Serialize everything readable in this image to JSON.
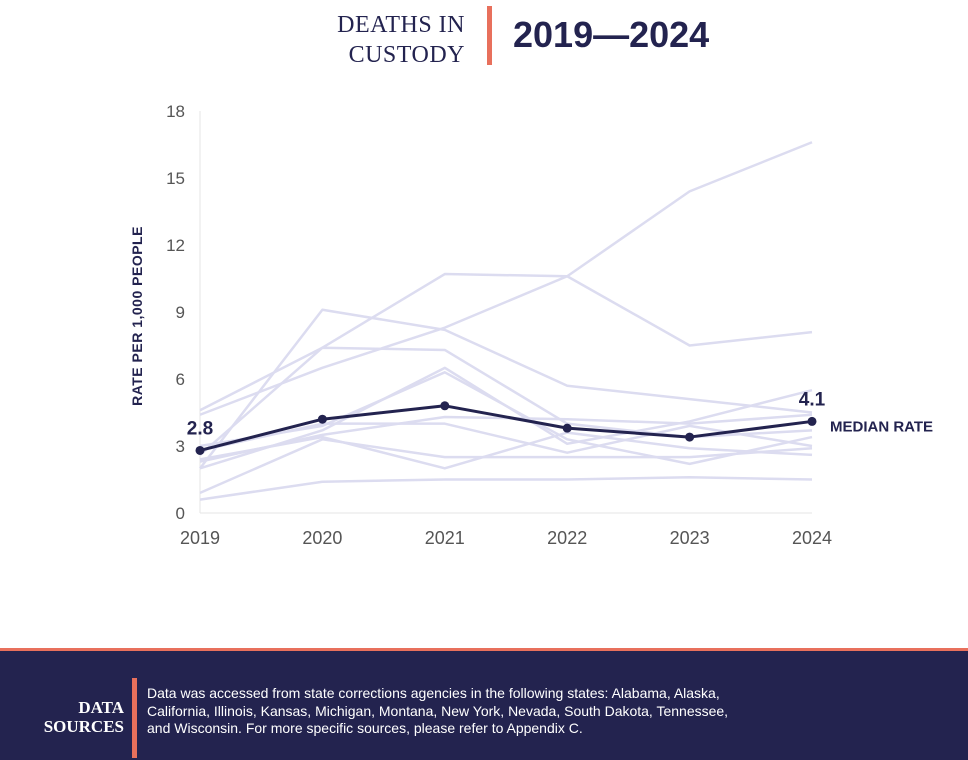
{
  "header": {
    "title_line1": "DEATHS IN",
    "title_line2": "CUSTODY",
    "years": "2019—2024"
  },
  "chart_data": {
    "type": "line",
    "x": [
      "2019",
      "2020",
      "2021",
      "2022",
      "2023",
      "2024"
    ],
    "ylabel": "RATE PER 1,000 PEOPLE",
    "ylim": [
      0,
      18
    ],
    "yticks": [
      "0",
      "3",
      "6",
      "9",
      "12",
      "15",
      "18"
    ],
    "grid": false,
    "median": {
      "name": "MEDIAN RATE",
      "values": [
        2.8,
        4.2,
        4.8,
        3.8,
        3.4,
        4.1
      ],
      "start_label": "2.8",
      "end_label": "4.1",
      "color": "#23234f"
    },
    "background_color": "#dcdcf0",
    "background_series": [
      {
        "values": [
          4.6,
          7.4,
          7.3,
          4.0,
          3.4,
          3.7
        ]
      },
      {
        "values": [
          4.4,
          6.5,
          8.3,
          10.6,
          14.4,
          16.6
        ]
      },
      {
        "values": [
          2.6,
          7.4,
          10.7,
          10.6,
          7.5,
          8.1
        ]
      },
      {
        "values": [
          2.0,
          9.1,
          8.2,
          5.7,
          5.1,
          4.5
        ]
      },
      {
        "values": [
          2.0,
          3.7,
          6.5,
          3.1,
          4.1,
          5.5
        ]
      },
      {
        "values": [
          3.0,
          3.9,
          6.3,
          3.3,
          2.2,
          3.4
        ]
      },
      {
        "values": [
          2.3,
          3.5,
          4.3,
          4.2,
          4.0,
          4.4
        ]
      },
      {
        "values": [
          2.8,
          4.0,
          4.0,
          2.7,
          3.9,
          3.0
        ]
      },
      {
        "values": [
          2.4,
          3.4,
          2.0,
          3.6,
          2.9,
          2.6
        ]
      },
      {
        "values": [
          0.9,
          3.3,
          2.5,
          2.5,
          2.5,
          2.9
        ]
      },
      {
        "values": [
          0.6,
          1.4,
          1.5,
          1.5,
          1.6,
          1.5
        ]
      }
    ]
  },
  "footer": {
    "label_line1": "DATA",
    "label_line2": "SOURCES",
    "text": "Data was accessed from state corrections agencies in the following states: Alabama, Alaska, California, Illinois, Kansas, Michigan, Montana, New York, Nevada, South Dakota, Tennessee, and Wisconsin. For more specific sources, please refer to Appendix C."
  }
}
